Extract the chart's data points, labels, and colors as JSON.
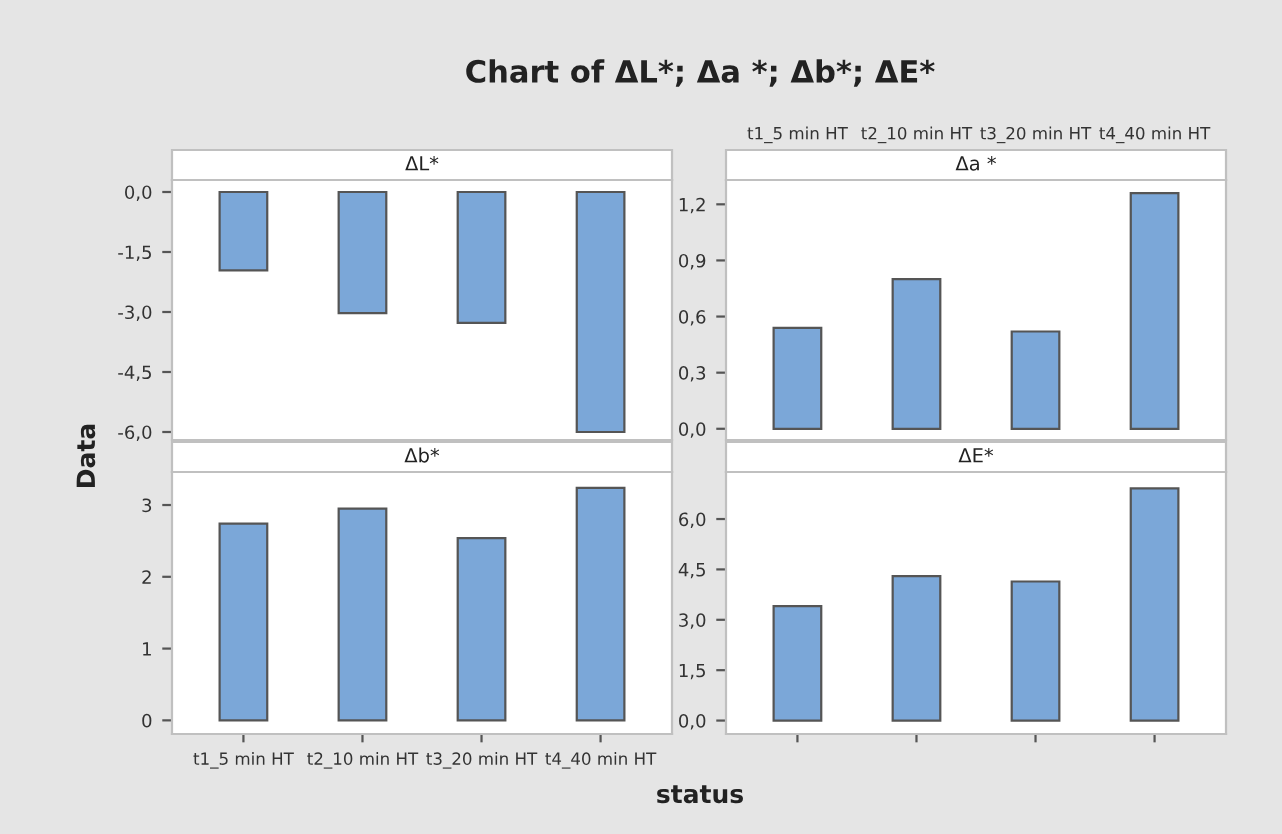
{
  "chart_data": [
    {
      "type": "bar",
      "title": "ΔL*",
      "annotations": [
        "Chart of ΔL*; Δa *; Δb*; ΔE*"
      ],
      "ylabel": "Data",
      "categories": [
        null,
        null,
        null,
        null
      ],
      "values": [
        -1.96,
        -3.03,
        -3.27,
        -6.0
      ],
      "color": "#7ba7d8",
      "ylim": [
        -6.2,
        0.3
      ],
      "yticks": [
        {
          "value": 0,
          "label": "0,0"
        },
        {
          "value": -1.5,
          "label": "-1,5"
        },
        {
          "value": -3,
          "label": "-3,0"
        },
        {
          "value": -4.5,
          "label": "-4,5"
        },
        {
          "value": -6,
          "label": "-6,0"
        }
      ],
      "tick_labels": "y",
      "grid": false,
      "legend": false
    },
    {
      "type": "bar",
      "title": "Δa *",
      "categories": [
        "t1_5 min HT",
        "t2_10 min HT",
        "t3_20 min HT",
        "t4_40 min HT"
      ],
      "values": [
        0.54,
        0.8,
        0.52,
        1.26
      ],
      "color": "#7ba7d8",
      "ylim": [
        -0.06,
        1.33
      ],
      "yticks": [
        {
          "value": 0,
          "label": "0,0"
        },
        {
          "value": 0.3,
          "label": "0,3"
        },
        {
          "value": 0.6,
          "label": "0,6"
        },
        {
          "value": 0.9,
          "label": "0,9"
        },
        {
          "value": 1.2,
          "label": "1,2"
        }
      ],
      "grid": false,
      "legend": false
    },
    {
      "type": "bar",
      "title": "Δb*",
      "xlabel": "status",
      "categories": [
        "t1_5 min HT",
        "t2_10 min HT",
        "t3_20 min HT",
        "t4_40 min HT"
      ],
      "values": [
        2.74,
        2.95,
        2.54,
        3.24
      ],
      "color": "#7ba7d8",
      "ylim": [
        -0.19,
        3.46
      ],
      "yticks": [
        0,
        1,
        2,
        3
      ],
      "grid": false,
      "legend": false
    },
    {
      "type": "bar",
      "title": "ΔE*",
      "categories": [
        null,
        null,
        null,
        null
      ],
      "values": [
        3.41,
        4.3,
        4.14,
        6.91
      ],
      "color": "#7ba7d8",
      "ylim": [
        -0.4,
        7.4
      ],
      "yticks": [
        {
          "value": 0,
          "label": "0,0"
        },
        {
          "value": 1.5,
          "label": "1,5"
        },
        {
          "value": 3,
          "label": "3,0"
        },
        {
          "value": 4.5,
          "label": "4,5"
        },
        {
          "value": 6,
          "label": "6,0"
        }
      ],
      "tick_labels": "y",
      "grid": false,
      "legend": false
    }
  ]
}
